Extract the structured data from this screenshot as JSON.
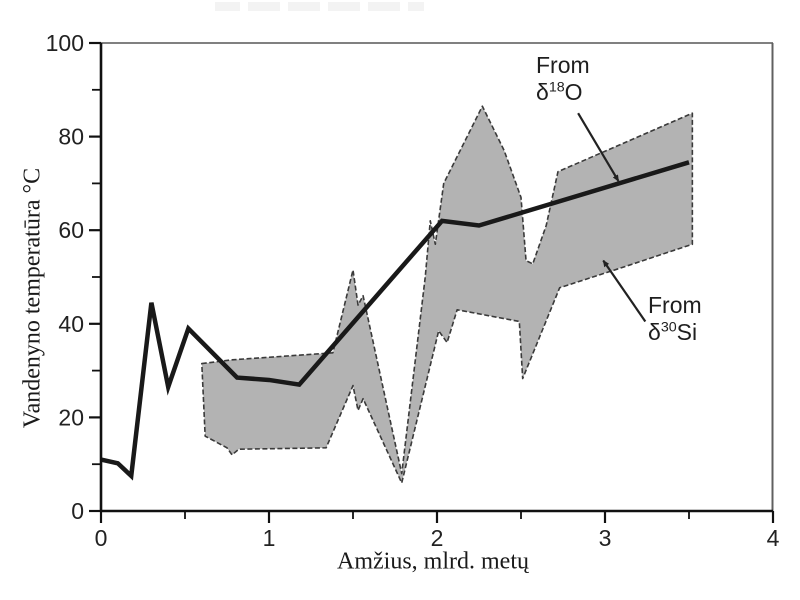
{
  "chart_data": {
    "type": "area",
    "title": "",
    "xlabel": "Amžius, mlrd. metų",
    "ylabel": "Vandenyno temperatūra °C",
    "xlim": [
      0,
      4
    ],
    "ylim": [
      0,
      100
    ],
    "x_ticks": [
      0,
      1,
      2,
      3,
      4
    ],
    "x_minor_ticks": [
      0.5,
      1.5,
      2.5,
      3.5
    ],
    "y_ticks": [
      0,
      20,
      40,
      60,
      80,
      100
    ],
    "y_minor_ticks": [
      10,
      30,
      50,
      70,
      90
    ],
    "grid": false,
    "legend_position": "annotated-on-plot",
    "series": [
      {
        "name": "From δ30Si",
        "type": "band",
        "fill": "#b3b3b3",
        "edge_color": "#3a3a3a",
        "polygon": [
          [
            0.6,
            31.5
          ],
          [
            0.78,
            32.3
          ],
          [
            1.38,
            33.8
          ],
          [
            1.5,
            51.5
          ],
          [
            1.53,
            44.0
          ],
          [
            1.56,
            46.0
          ],
          [
            1.79,
            8.0
          ],
          [
            1.93,
            50.0
          ],
          [
            1.96,
            62.0
          ],
          [
            1.99,
            57.0
          ],
          [
            2.04,
            70.0
          ],
          [
            2.27,
            86.5
          ],
          [
            2.4,
            77.0
          ],
          [
            2.5,
            67.0
          ],
          [
            2.53,
            53.5
          ],
          [
            2.57,
            52.8
          ],
          [
            2.65,
            61.0
          ],
          [
            2.72,
            72.5
          ],
          [
            3.52,
            85.0
          ],
          [
            3.52,
            57.0
          ],
          [
            3.1,
            52.0
          ],
          [
            2.73,
            47.7
          ],
          [
            2.51,
            28.3
          ],
          [
            2.49,
            40.5
          ],
          [
            2.12,
            43.0
          ],
          [
            2.06,
            36.0
          ],
          [
            2.01,
            38.5
          ],
          [
            1.79,
            6.0
          ],
          [
            1.56,
            24.0
          ],
          [
            1.53,
            21.5
          ],
          [
            1.5,
            26.8
          ],
          [
            1.34,
            13.5
          ],
          [
            0.82,
            13.2
          ],
          [
            0.78,
            12.0
          ],
          [
            0.75,
            13.5
          ],
          [
            0.62,
            16.0
          ]
        ]
      },
      {
        "name": "From δ18O",
        "type": "line",
        "color": "#191919",
        "width": 4.5,
        "points": [
          [
            0.0,
            11.0
          ],
          [
            0.1,
            10.2
          ],
          [
            0.18,
            7.5
          ],
          [
            0.3,
            44.5
          ],
          [
            0.4,
            26.5
          ],
          [
            0.52,
            39.0
          ],
          [
            0.81,
            28.5
          ],
          [
            1.0,
            28.0
          ],
          [
            1.18,
            27.0
          ],
          [
            2.03,
            62.0
          ],
          [
            2.25,
            61.0
          ],
          [
            3.5,
            74.5
          ]
        ]
      }
    ],
    "annotations": [
      {
        "id": "o18",
        "text_line1": "From",
        "symbol": "δ",
        "sup": "18",
        "suffix": "O",
        "arrow_from": [
          2.84,
          85.0
        ],
        "arrow_to": [
          3.08,
          70.5
        ]
      },
      {
        "id": "si30",
        "text_line1": "From",
        "symbol": "δ",
        "sup": "30",
        "suffix": "Si",
        "arrow_from": [
          3.24,
          40.5
        ],
        "arrow_to": [
          2.99,
          53.5
        ]
      }
    ]
  }
}
